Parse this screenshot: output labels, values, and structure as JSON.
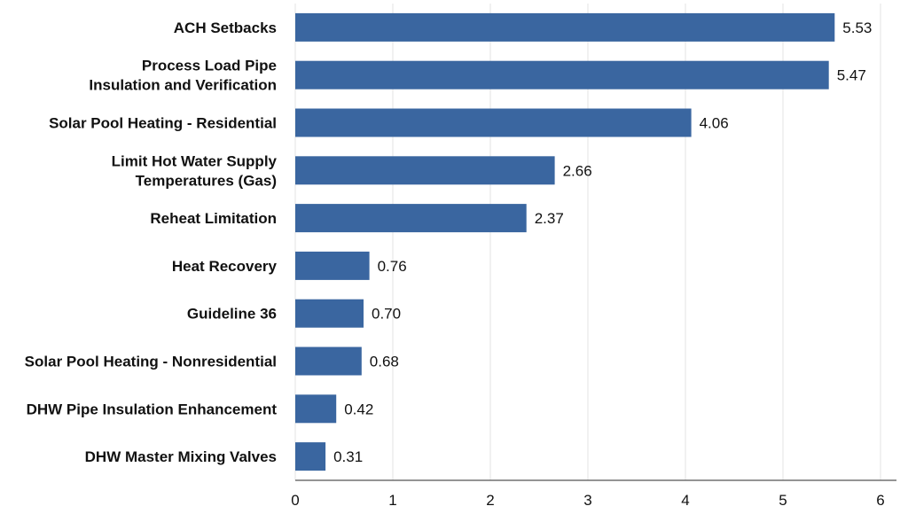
{
  "chart_data": {
    "type": "bar",
    "orientation": "horizontal",
    "categories": [
      "ACH Setbacks",
      "Process Load Pipe\nInsulation and Verification",
      "Solar Pool Heating - Residential",
      "Limit Hot Water Supply\nTemperatures (Gas)",
      "Reheat Limitation",
      "Heat Recovery",
      "Guideline 36",
      "Solar Pool Heating - Nonresidential",
      "DHW Pipe Insulation Enhancement",
      "DHW Master Mixing Valves"
    ],
    "values": [
      5.53,
      5.47,
      4.06,
      2.66,
      2.37,
      0.76,
      0.7,
      0.68,
      0.42,
      0.31
    ],
    "value_labels": [
      "5.53",
      "5.47",
      "4.06",
      "2.66",
      "2.37",
      "0.76",
      "0.70",
      "0.68",
      "0.42",
      "0.31"
    ],
    "xlim": [
      0,
      6
    ],
    "xticks": [
      "0",
      "1",
      "2",
      "3",
      "4",
      "5",
      "6"
    ],
    "grid": "vertical",
    "bar_color": "#3a66a0",
    "title": "",
    "xlabel": "",
    "ylabel": ""
  }
}
